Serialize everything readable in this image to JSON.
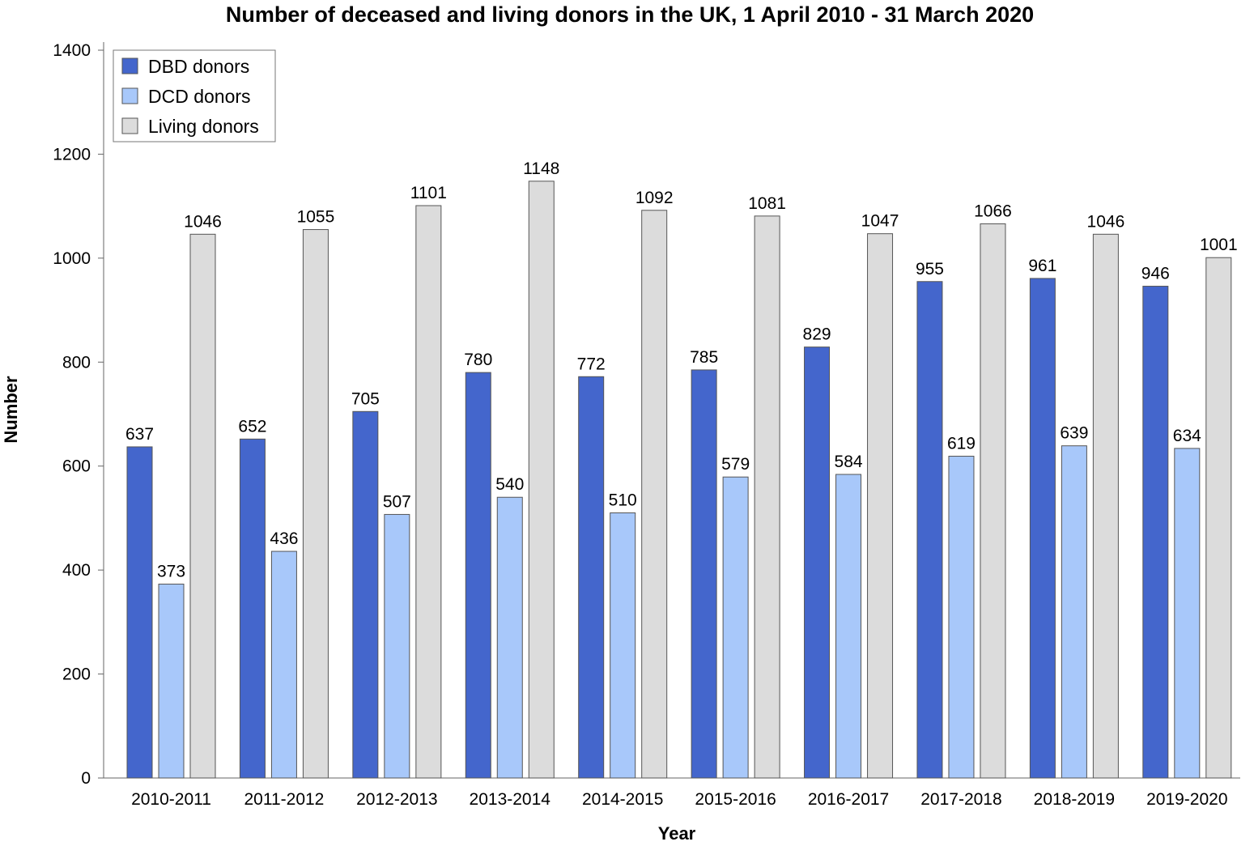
{
  "chart_data": {
    "type": "bar",
    "title": "Number of deceased and living donors in the UK, 1 April 2010 - 31 March 2020",
    "xlabel": "Year",
    "ylabel": "Number",
    "ylim": [
      0,
      1400
    ],
    "yticks": [
      0,
      200,
      400,
      600,
      800,
      1000,
      1200,
      1400
    ],
    "grid": false,
    "legend_position": "top-left",
    "categories": [
      "2010-2011",
      "2011-2012",
      "2012-2013",
      "2013-2014",
      "2014-2015",
      "2015-2016",
      "2016-2017",
      "2017-2018",
      "2018-2019",
      "2019-2020"
    ],
    "series": [
      {
        "name": "DBD donors",
        "color": "#4466cc",
        "values": [
          637,
          652,
          705,
          780,
          772,
          785,
          829,
          955,
          961,
          946
        ]
      },
      {
        "name": "DCD donors",
        "color": "#a8c8fa",
        "values": [
          373,
          436,
          507,
          540,
          510,
          579,
          584,
          619,
          639,
          634
        ]
      },
      {
        "name": "Living donors",
        "color": "#dcdcdc",
        "values": [
          1046,
          1055,
          1101,
          1148,
          1092,
          1081,
          1047,
          1066,
          1046,
          1001
        ]
      }
    ],
    "data_labels": true
  }
}
